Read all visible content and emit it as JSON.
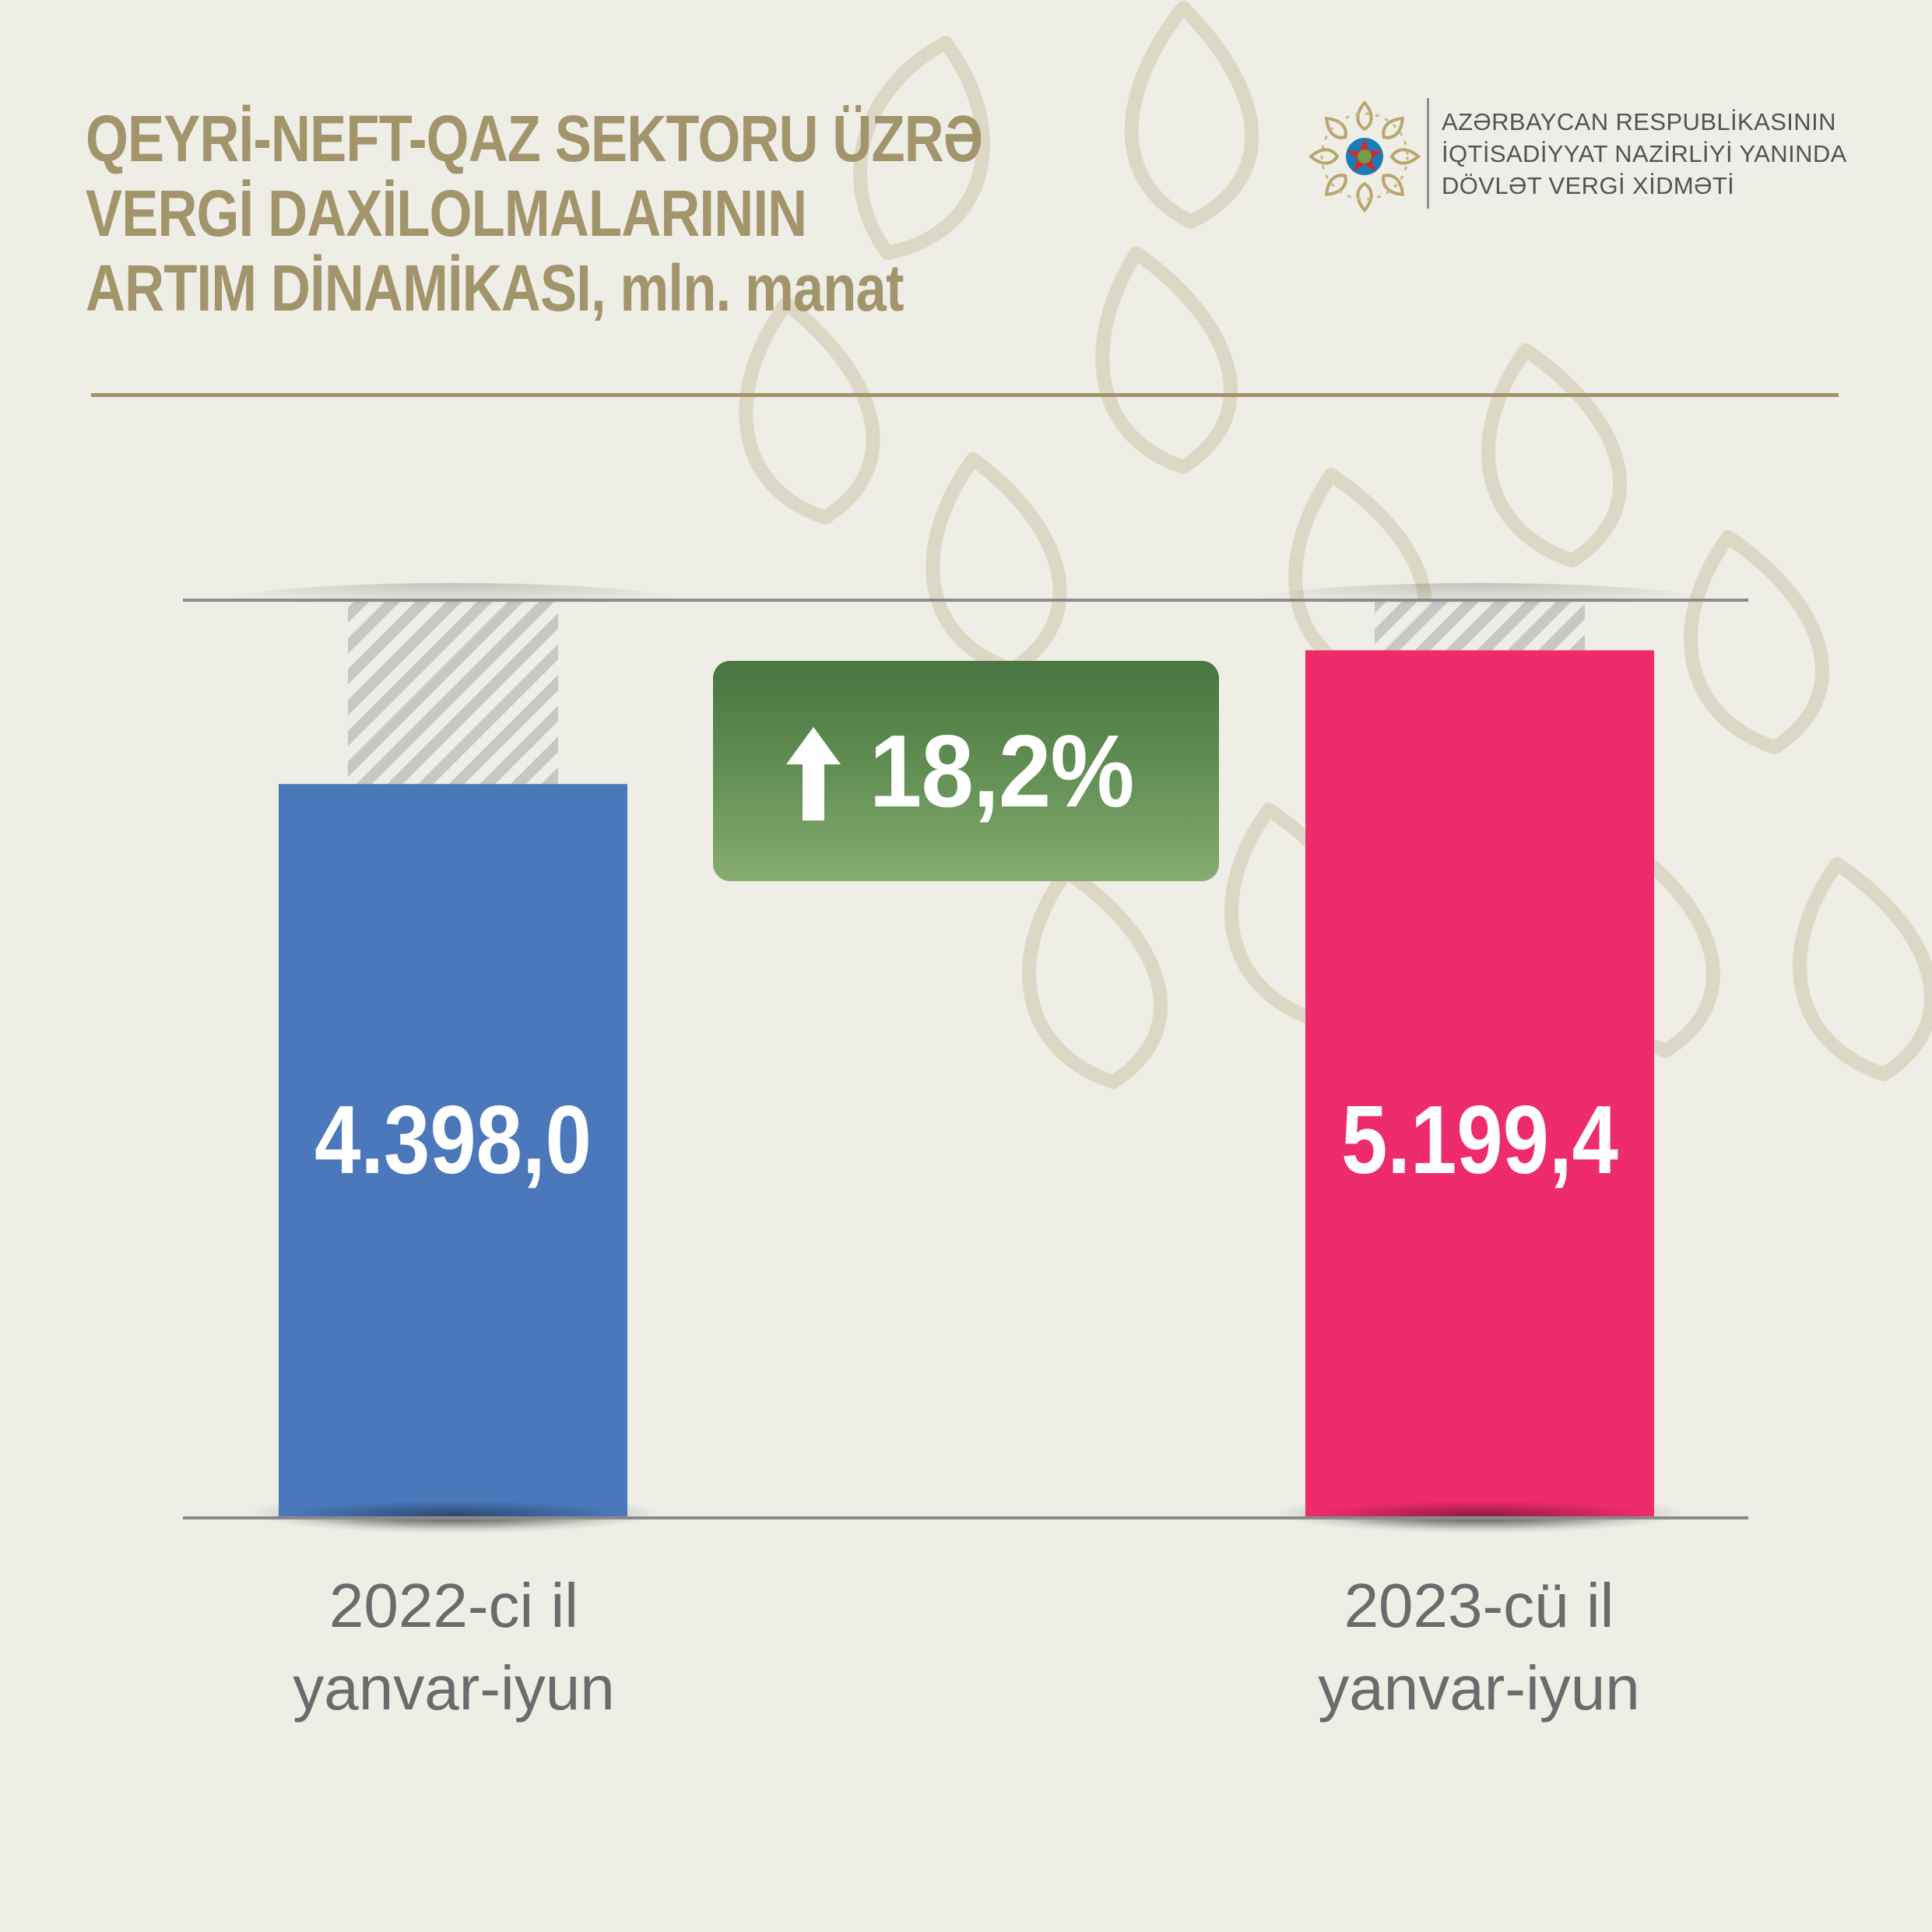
{
  "title": {
    "line1": "QEYRİ-NEFT-QAZ SEKTORU ÜZRƏ",
    "line2": "VERGİ DAXİLOLMALARININ",
    "line3_main": "ARTIM DİNAMİKASI,",
    "line3_unit": "mln. manat"
  },
  "organization": {
    "line1": "AZƏRBAYCAN RESPUBLİKASININ",
    "line2": "İQTİSADİYYAT NAZİRLİYİ YANINDA",
    "line3": "DÖVLƏT VERGİ XİDMƏTİ"
  },
  "growth_badge": {
    "value_text": "18,2%",
    "icon": "up-arrow-icon",
    "color_top": "#487540",
    "color_bottom": "#86ac70"
  },
  "colors": {
    "background": "#efeee6",
    "title": "#a2946b",
    "bar_2022": "#4a78ba",
    "bar_2023": "#ee2c6b",
    "axis_line": "#8a8a8a",
    "hatch": "#c7c7c5",
    "x_label": "#6b6b6e"
  },
  "chart_data": {
    "type": "bar",
    "categories": [
      "2022-ci il yanvar-iyun",
      "2023-cü il yanvar-iyun"
    ],
    "category_lines": [
      [
        "2022-ci il",
        "yanvar-iyun"
      ],
      [
        "2023-cü il",
        "yanvar-iyun"
      ]
    ],
    "values": [
      4398.0,
      5199.4
    ],
    "value_labels": [
      "4.398,0",
      "5.199,4"
    ],
    "unit": "mln. manat",
    "ylim": [
      0,
      5500
    ],
    "grid": false,
    "annotations": [
      "18,2%"
    ]
  }
}
